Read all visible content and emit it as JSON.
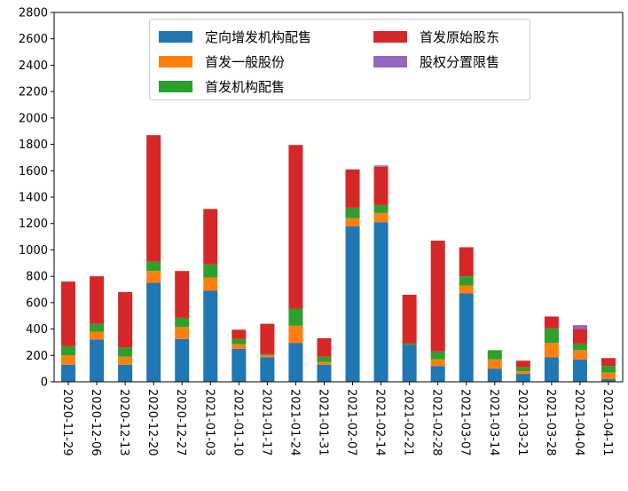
{
  "chart_data": {
    "type": "bar",
    "stacked": true,
    "categories": [
      "2020-11-29",
      "2020-12-06",
      "2020-12-13",
      "2020-12-20",
      "2020-12-27",
      "2021-01-03",
      "2021-01-10",
      "2021-01-17",
      "2021-01-24",
      "2021-01-31",
      "2021-02-07",
      "2021-02-14",
      "2021-02-21",
      "2021-02-28",
      "2021-03-07",
      "2021-03-14",
      "2021-03-21",
      "2021-03-28",
      "2021-04-04",
      "2021-04-11"
    ],
    "series": [
      {
        "name": "定向增发机构配售",
        "color": "#1f77b4",
        "values": [
          130,
          320,
          130,
          750,
          325,
          690,
          250,
          185,
          295,
          130,
          1180,
          1210,
          280,
          120,
          670,
          100,
          60,
          185,
          170,
          20
        ]
      },
      {
        "name": "首发一般股份",
        "color": "#ff7f0e",
        "values": [
          70,
          60,
          60,
          90,
          90,
          100,
          35,
          15,
          130,
          20,
          60,
          70,
          0,
          50,
          60,
          70,
          20,
          110,
          70,
          50
        ]
      },
      {
        "name": "首发机构配售",
        "color": "#2ca02c",
        "values": [
          70,
          60,
          70,
          70,
          70,
          100,
          40,
          10,
          130,
          40,
          80,
          60,
          10,
          60,
          70,
          70,
          30,
          110,
          50,
          50
        ]
      },
      {
        "name": "首发原始股东",
        "color": "#d62728",
        "values": [
          490,
          360,
          420,
          960,
          355,
          420,
          70,
          230,
          1240,
          140,
          290,
          290,
          370,
          840,
          220,
          0,
          50,
          90,
          110,
          60
        ]
      },
      {
        "name": "股权分置限售",
        "color": "#9467bd",
        "values": [
          0,
          0,
          0,
          0,
          0,
          0,
          0,
          0,
          0,
          0,
          0,
          10,
          0,
          0,
          0,
          0,
          0,
          0,
          30,
          0
        ]
      }
    ],
    "legend_order": [
      0,
      2,
      4,
      1,
      3
    ],
    "ylim": [
      0,
      2800
    ],
    "yticks": [
      0,
      200,
      400,
      600,
      800,
      1000,
      1200,
      1400,
      1600,
      1800,
      2000,
      2200,
      2400,
      2600,
      2800
    ],
    "legend_position": "upper-center",
    "grid": false
  }
}
